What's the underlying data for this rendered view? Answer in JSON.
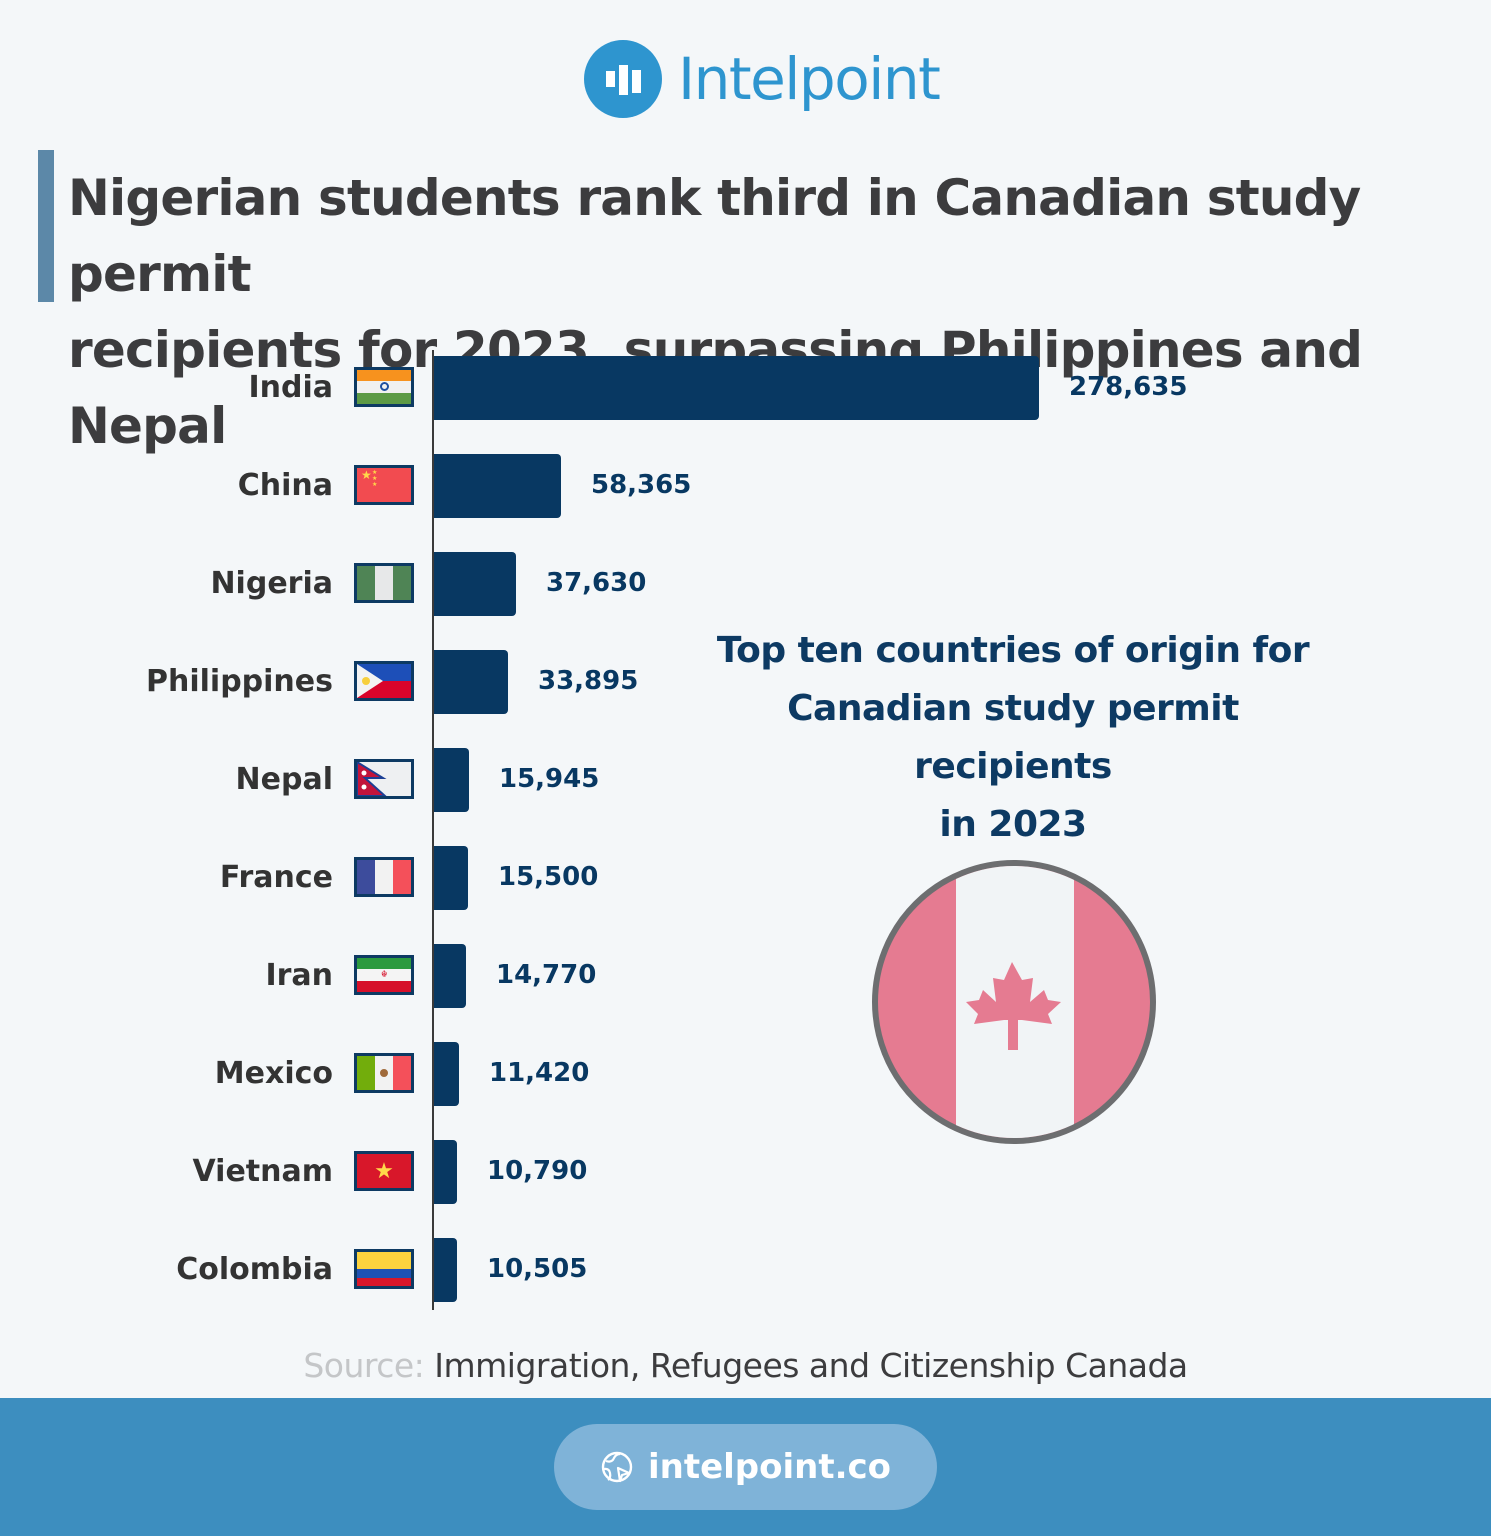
{
  "brand": {
    "name": "Intelpoint",
    "color": "#2e95cf"
  },
  "headline": {
    "line1": "Nigerian students rank third in Canadian study permit",
    "line2": "recipients for 2023, surpassing Philippines and Nepal"
  },
  "side_title": {
    "line1": "Top ten countries of origin for",
    "line2": "Canadian study permit recipients",
    "line3": "in 2023"
  },
  "source": {
    "label": "Source:",
    "text": " Immigration, Refugees and Citizenship Canada"
  },
  "footer": {
    "url": "intelpoint.co",
    "icon": "globe-icon"
  },
  "colors": {
    "bar": "#083862",
    "background": "#f4f7f9",
    "footer": "#3d8ebf"
  },
  "rows": [
    {
      "country": "India",
      "value_label": "278,635",
      "flag": "india"
    },
    {
      "country": "China",
      "value_label": "58,365",
      "flag": "china"
    },
    {
      "country": "Nigeria",
      "value_label": "37,630",
      "flag": "nigeria"
    },
    {
      "country": "Philippines",
      "value_label": "33,895",
      "flag": "philippines"
    },
    {
      "country": "Nepal",
      "value_label": "15,945",
      "flag": "nepal"
    },
    {
      "country": "France",
      "value_label": "15,500",
      "flag": "france"
    },
    {
      "country": "Iran",
      "value_label": "14,770",
      "flag": "iran"
    },
    {
      "country": "Mexico",
      "value_label": "11,420",
      "flag": "mexico"
    },
    {
      "country": "Vietnam",
      "value_label": "10,790",
      "flag": "vietnam"
    },
    {
      "country": "Colombia",
      "value_label": "10,505",
      "flag": "colombia"
    }
  ],
  "chart_data": {
    "type": "bar",
    "orientation": "horizontal",
    "title": "Top ten countries of origin for Canadian study permit recipients in 2023",
    "categories": [
      "India",
      "China",
      "Nigeria",
      "Philippines",
      "Nepal",
      "France",
      "Iran",
      "Mexico",
      "Vietnam",
      "Colombia"
    ],
    "values": [
      278635,
      58365,
      37630,
      33895,
      15945,
      15500,
      14770,
      11420,
      10790,
      10505
    ],
    "xlabel": "",
    "ylabel": "",
    "grid": false,
    "legend": null,
    "data_labels": true,
    "source": "Immigration, Refugees and Citizenship Canada"
  }
}
